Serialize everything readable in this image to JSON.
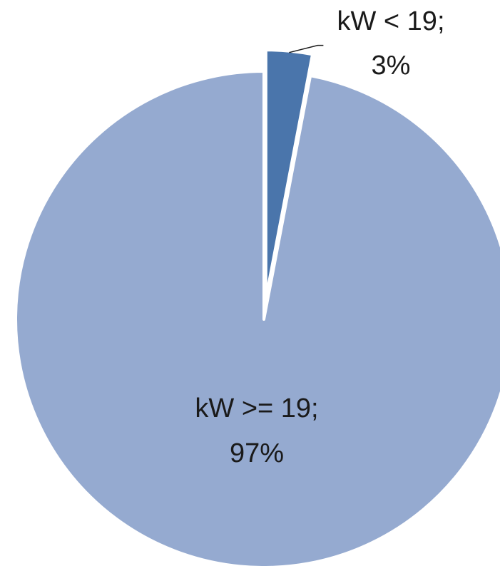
{
  "chart_data": {
    "type": "pie",
    "title": "",
    "slices": [
      {
        "label": "kW < 19",
        "value": 3,
        "label_text": "kW < 19;",
        "value_text": "3%",
        "color": "#4A75AB",
        "exploded": true
      },
      {
        "label": "kW >= 19",
        "value": 97,
        "label_text": "kW >= 19;",
        "value_text": "97%",
        "color": "#95AAD0",
        "exploded": false
      }
    ],
    "start_angle": "12 o'clock",
    "direction": "clockwise",
    "legend": "none"
  }
}
